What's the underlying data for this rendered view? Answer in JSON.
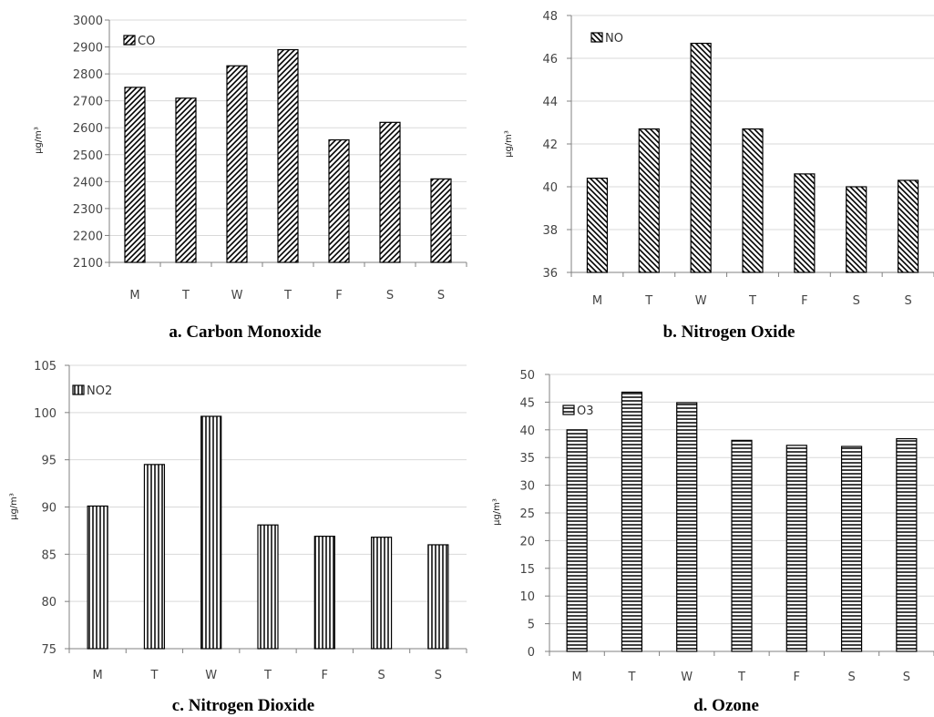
{
  "colors": {
    "bar_fill": "#ffffff",
    "bar_stroke": "#000000",
    "grid": "#d9d9d9",
    "axis": "#808080"
  },
  "chart_data": [
    {
      "type": "bar",
      "categories": [
        "M",
        "T",
        "W",
        "T",
        "F",
        "S",
        "S"
      ],
      "series": [
        {
          "name": "CO",
          "values": [
            2750,
            2710,
            2830,
            2890,
            2555,
            2620,
            2410
          ]
        }
      ],
      "ylabel": "µg/m³",
      "ylim": [
        2100,
        3000
      ],
      "yticks": [
        2100,
        2200,
        2300,
        2400,
        2500,
        2600,
        2700,
        2800,
        2900,
        3000
      ],
      "caption": "a. Carbon Monoxide",
      "hatch": "diagonal-forward",
      "grid": true,
      "legend": "top-left"
    },
    {
      "type": "bar",
      "categories": [
        "M",
        "T",
        "W",
        "T",
        "F",
        "S",
        "S"
      ],
      "series": [
        {
          "name": "NO",
          "values": [
            40.4,
            42.7,
            46.7,
            42.7,
            40.6,
            40.0,
            40.3
          ]
        }
      ],
      "ylabel": "µg/m³",
      "ylim": [
        36,
        48
      ],
      "yticks": [
        36,
        38,
        40,
        42,
        44,
        46,
        48
      ],
      "caption": "b. Nitrogen Oxide",
      "hatch": "diagonal-back",
      "grid": true,
      "legend": "top-left"
    },
    {
      "type": "bar",
      "categories": [
        "M",
        "T",
        "W",
        "T",
        "F",
        "S",
        "S"
      ],
      "series": [
        {
          "name": "NO2",
          "values": [
            90.1,
            94.5,
            99.6,
            88.1,
            86.9,
            86.8,
            86.0
          ]
        }
      ],
      "ylabel": "µg/m³",
      "ylim": [
        75,
        105
      ],
      "yticks": [
        75,
        80,
        85,
        90,
        95,
        100,
        105
      ],
      "caption": "c. Nitrogen Dioxide",
      "hatch": "vertical",
      "grid": true,
      "legend": "top-left"
    },
    {
      "type": "bar",
      "categories": [
        "M",
        "T",
        "W",
        "T",
        "F",
        "S",
        "S"
      ],
      "series": [
        {
          "name": "O3",
          "values": [
            40.0,
            46.8,
            44.9,
            38.1,
            37.2,
            37.0,
            38.4
          ]
        }
      ],
      "ylabel": "µg/m³",
      "ylim": [
        0,
        50
      ],
      "yticks": [
        0,
        5,
        10,
        15,
        20,
        25,
        30,
        35,
        40,
        45,
        50
      ],
      "caption": "d. Ozone",
      "hatch": "horizontal",
      "grid": true,
      "legend": "top-left"
    }
  ]
}
